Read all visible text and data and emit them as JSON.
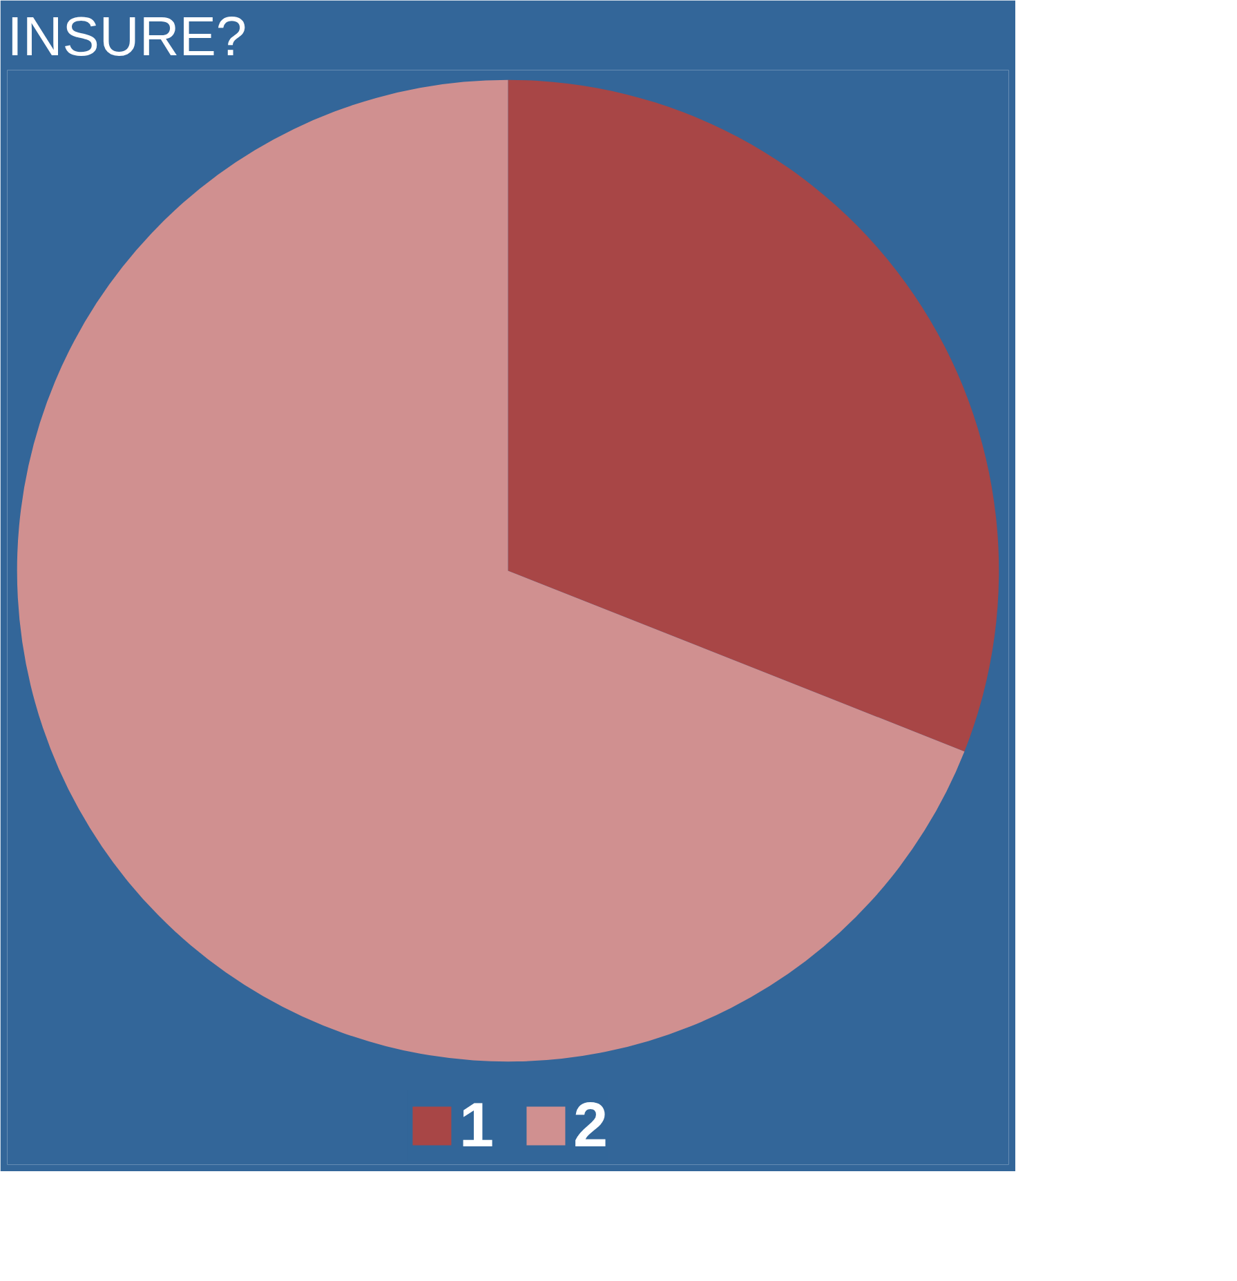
{
  "chart_data": {
    "type": "pie",
    "title": "INSURE?",
    "categories": [
      "1",
      "2"
    ],
    "values": [
      31,
      69
    ],
    "colors": [
      "#a84646",
      "#d09090"
    ],
    "legend": "bottom"
  }
}
